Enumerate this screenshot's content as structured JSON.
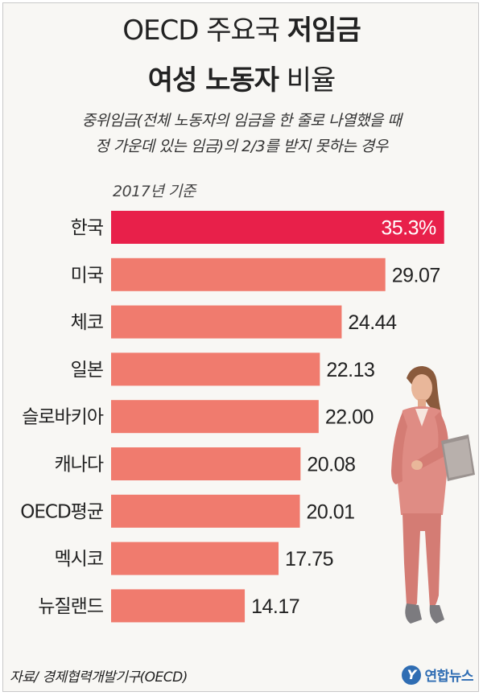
{
  "title": {
    "line1_light": "OECD 주요국 ",
    "line1_bold": "저임금",
    "line2_bold": "여성 노동자",
    "line2_light": " 비율"
  },
  "subtitle": {
    "line1": "중위임금(전체 노동자의 임금을 한 줄로 나열했을 때",
    "line2": "정 가운데 있는 임금)의 2/3를 받지 못하는 경우"
  },
  "basis": "2017년 기준",
  "chart_data": {
    "type": "bar",
    "orientation": "horizontal",
    "categories": [
      "한국",
      "미국",
      "체코",
      "일본",
      "슬로바키아",
      "캐나다",
      "OECD평균",
      "멕시코",
      "뉴질랜드"
    ],
    "values": [
      35.3,
      29.07,
      24.44,
      22.13,
      22.0,
      20.08,
      20.01,
      17.75,
      14.17
    ],
    "value_labels": [
      "35.3%",
      "29.07",
      "24.44",
      "22.13",
      "22.00",
      "20.08",
      "20.01",
      "17.75",
      "14.17"
    ],
    "unit": "%",
    "highlight_index": 0,
    "colors": {
      "highlight": "#e8204a",
      "bar": "#f07b6e",
      "text": "#222222",
      "highlight_text": "#ffffff"
    }
  },
  "source": "자료/ 경제협력개발기구(OECD)",
  "logo": {
    "mark": "Y",
    "text": "연합뉴스"
  },
  "illustration": {
    "icon": "business-woman-holding-folder-icon"
  }
}
